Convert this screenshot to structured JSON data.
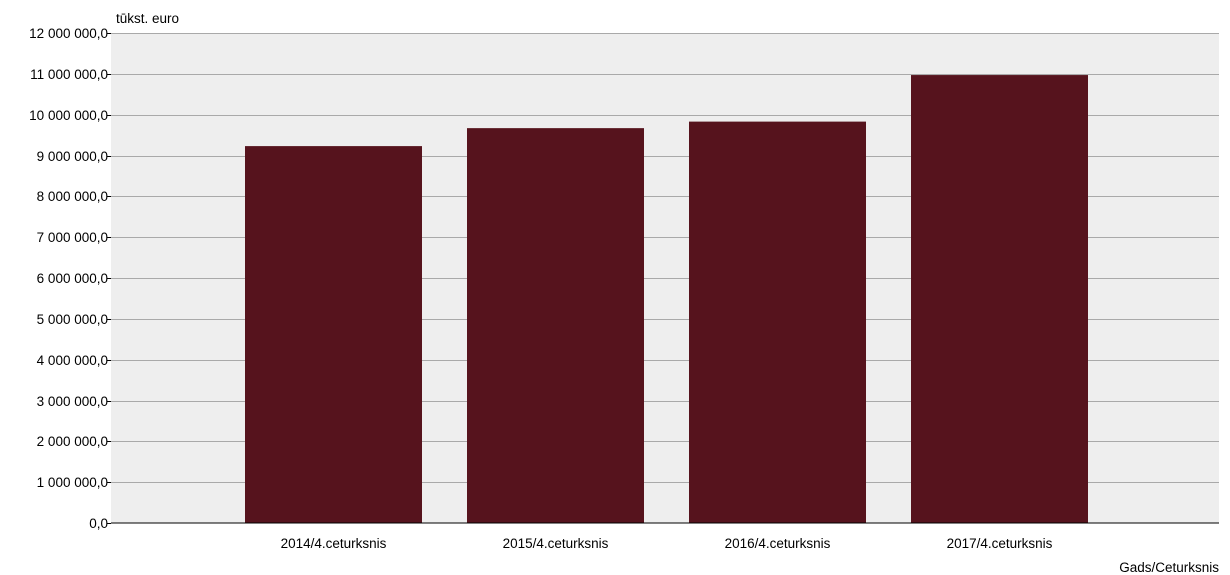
{
  "chart_data": {
    "type": "bar",
    "ylabel": "tūkst. euro",
    "xlabel": "Gads/Ceturksnis",
    "categories": [
      "2014/4.ceturksnis",
      "2015/4.ceturksnis",
      "2016/4.ceturksnis",
      "2017/4.ceturksnis"
    ],
    "values": [
      9230000,
      9670000,
      9830000,
      10970000
    ],
    "ylim": [
      0,
      12000000
    ],
    "yticks": [
      {
        "value": 0,
        "label": "0,0"
      },
      {
        "value": 1000000,
        "label": "1 000 000,0"
      },
      {
        "value": 2000000,
        "label": "2 000 000,0"
      },
      {
        "value": 3000000,
        "label": "3 000 000,0"
      },
      {
        "value": 4000000,
        "label": "4 000 000,0"
      },
      {
        "value": 5000000,
        "label": "5 000 000,0"
      },
      {
        "value": 6000000,
        "label": "6 000 000,0"
      },
      {
        "value": 7000000,
        "label": "7 000 000,0"
      },
      {
        "value": 8000000,
        "label": "8 000 000,0"
      },
      {
        "value": 9000000,
        "label": "9 000 000,0"
      },
      {
        "value": 10000000,
        "label": "10 000 000,0"
      },
      {
        "value": 11000000,
        "label": "11 000 000,0"
      },
      {
        "value": 12000000,
        "label": "12 000 000,0"
      }
    ],
    "grid": true,
    "colors": {
      "bar": "#56131d",
      "plot_background": "#eeeeee",
      "gridline": "#a9a9a9",
      "axis": "#000000"
    }
  }
}
